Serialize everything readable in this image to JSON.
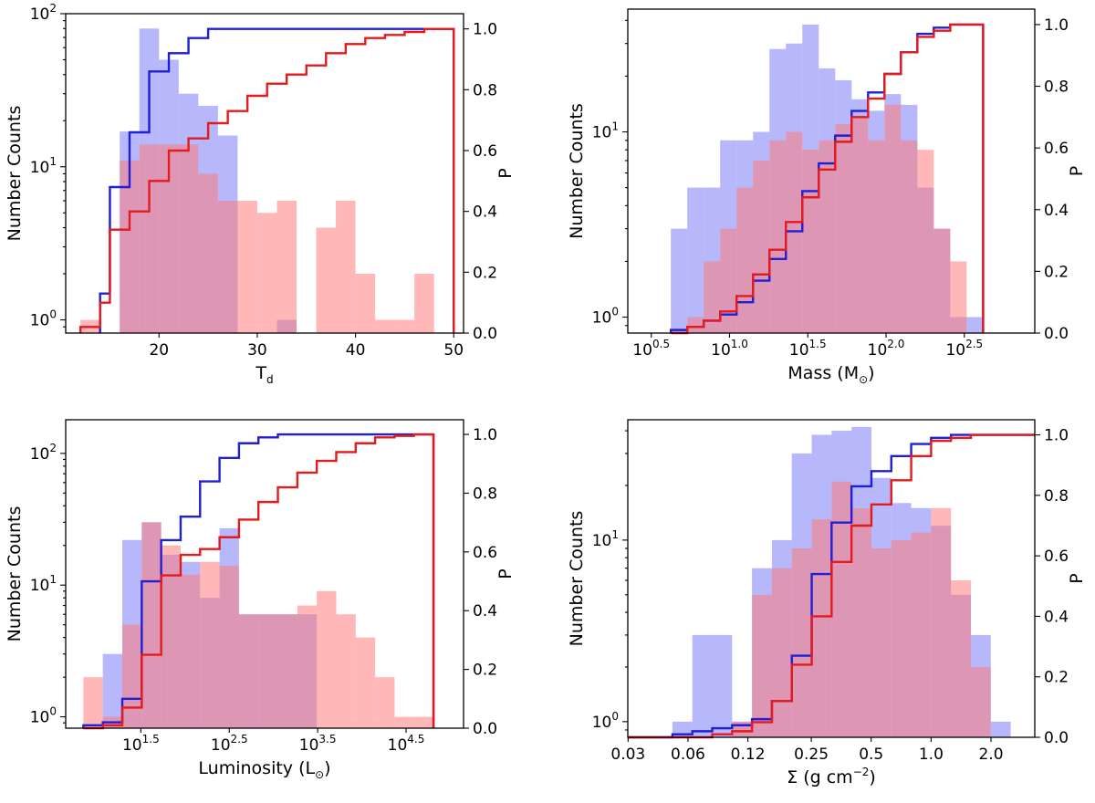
{
  "chart_data": [
    {
      "type": "bar",
      "title": "",
      "xlabel": "T",
      "xlabel_sub": "d",
      "ylabel": "Number Counts",
      "y2label": "P",
      "xscale": "linear",
      "xlim": [
        10.5,
        51
      ],
      "ylim": [
        0.82,
        100
      ],
      "y2lim": [
        0,
        1.05
      ],
      "x_ticks": [
        {
          "value": 20,
          "label": "20"
        },
        {
          "value": 30,
          "label": "30"
        },
        {
          "value": 40,
          "label": "40"
        },
        {
          "value": 50,
          "label": "50"
        }
      ],
      "y_ticks": [
        {
          "value": 1,
          "label": "10",
          "sup": "0"
        },
        {
          "value": 10,
          "label": "10",
          "sup": "1"
        },
        {
          "value": 100,
          "label": "10",
          "sup": "2"
        }
      ],
      "y2_ticks": [
        "0.0",
        "0.2",
        "0.4",
        "0.6",
        "0.8",
        "1.0"
      ],
      "series": [
        {
          "name": "blue histogram",
          "color": "#7b7bf7",
          "edges": [
            12,
            14,
            16,
            18,
            20,
            22,
            24,
            26,
            28,
            30,
            32,
            34,
            36,
            38,
            40,
            42,
            44,
            46,
            48,
            50
          ],
          "counts": [
            0,
            0,
            17,
            80,
            50,
            30,
            25,
            16,
            0,
            0,
            1,
            0,
            0,
            0,
            0,
            0,
            0,
            0,
            0
          ]
        },
        {
          "name": "red histogram",
          "color": "#ff7b7b",
          "edges": [
            12,
            14,
            16,
            18,
            20,
            22,
            24,
            26,
            28,
            30,
            32,
            34,
            36,
            38,
            40,
            42,
            44,
            46,
            48,
            50
          ],
          "counts": [
            1,
            0,
            11,
            14,
            14,
            14,
            9,
            6,
            6,
            5,
            6,
            0,
            4,
            6,
            2,
            1,
            1,
            2,
            0
          ]
        },
        {
          "name": "blue cumulative",
          "color": "#1f1fd6",
          "edges": [
            14,
            15,
            16,
            17,
            18,
            19,
            20,
            21,
            22,
            23,
            24,
            25,
            26,
            27,
            28,
            29,
            30,
            31,
            32,
            33,
            34,
            35,
            36,
            37,
            38,
            39,
            40,
            41,
            42,
            43,
            44,
            45,
            46,
            47,
            48,
            49,
            50
          ],
          "values": [
            0.13,
            0.48,
            0.48,
            0.66,
            0.66,
            0.86,
            0.86,
            0.92,
            0.92,
            0.97,
            0.97,
            1.0,
            1.0,
            1.0,
            1.0,
            1.0,
            1.0,
            1.0,
            1.0,
            1.0,
            1.0,
            1.0,
            1.0,
            1.0,
            1.0,
            1.0,
            1.0,
            1.0,
            1.0,
            1.0,
            1.0,
            1.0,
            1.0,
            1.0,
            1.0,
            1.0
          ]
        },
        {
          "name": "red cumulative",
          "color": "#e41a1c",
          "edges": [
            12,
            14,
            15,
            16,
            17,
            18,
            19,
            20,
            21,
            22,
            23,
            24,
            25,
            26,
            27,
            28,
            29,
            30,
            31,
            32,
            33,
            34,
            35,
            36,
            37,
            38,
            39,
            40,
            41,
            42,
            43,
            44,
            45,
            46,
            47,
            48,
            49,
            50
          ],
          "values": [
            0.02,
            0.1,
            0.34,
            0.34,
            0.4,
            0.4,
            0.5,
            0.5,
            0.6,
            0.6,
            0.64,
            0.64,
            0.69,
            0.69,
            0.73,
            0.73,
            0.78,
            0.78,
            0.82,
            0.82,
            0.85,
            0.85,
            0.88,
            0.88,
            0.92,
            0.92,
            0.95,
            0.95,
            0.97,
            0.97,
            0.98,
            0.98,
            0.99,
            0.99,
            1.0,
            1.0,
            1.0
          ]
        }
      ]
    },
    {
      "type": "bar",
      "title": "",
      "xlabel": "Mass (M",
      "xlabel_sym": "⊙",
      "xlabel_end": ")",
      "ylabel": "Number Counts",
      "y2label": "P",
      "xscale": "log",
      "xlim": [
        0.35,
        2.95
      ],
      "ylim": [
        0.82,
        46
      ],
      "y2lim": [
        0,
        1.05
      ],
      "x_ticks": [
        {
          "value": 0.5,
          "label": "10",
          "sup": "0.5"
        },
        {
          "value": 1.0,
          "label": "10",
          "sup": "1.0"
        },
        {
          "value": 1.5,
          "label": "10",
          "sup": "1.5"
        },
        {
          "value": 2.0,
          "label": "10",
          "sup": "2.0"
        },
        {
          "value": 2.5,
          "label": "10",
          "sup": "2.5"
        }
      ],
      "y_ticks": [
        {
          "value": 1,
          "label": "10",
          "sup": "0"
        },
        {
          "value": 10,
          "label": "10",
          "sup": "1"
        }
      ],
      "y2_ticks": [
        "0.0",
        "0.2",
        "0.4",
        "0.6",
        "0.8",
        "1.0"
      ],
      "series": [
        {
          "name": "blue histogram",
          "color": "#7b7bf7",
          "edges": [
            0.625,
            0.73,
            0.835,
            0.94,
            1.045,
            1.15,
            1.255,
            1.36,
            1.465,
            1.57,
            1.675,
            1.78,
            1.885,
            1.99,
            2.095,
            2.2,
            2.305,
            2.41,
            2.515,
            2.62
          ],
          "counts": [
            3,
            5,
            5,
            9,
            9,
            10,
            28,
            30,
            38,
            22,
            19,
            15,
            13,
            16,
            14,
            5,
            3,
            1,
            1
          ]
        },
        {
          "name": "red histogram",
          "color": "#ff7b7b",
          "edges": [
            0.625,
            0.73,
            0.835,
            0.94,
            1.045,
            1.15,
            1.255,
            1.36,
            1.465,
            1.57,
            1.675,
            1.78,
            1.885,
            1.99,
            2.095,
            2.2,
            2.305,
            2.41,
            2.515,
            2.62
          ],
          "counts": [
            0,
            1,
            2,
            3,
            5,
            7,
            9,
            10,
            8,
            9,
            11,
            12,
            9,
            14,
            9,
            8,
            3,
            2,
            0
          ]
        },
        {
          "name": "blue cumulative",
          "color": "#1f1fd6",
          "edges": [
            0.625,
            0.73,
            0.835,
            0.94,
            1.045,
            1.15,
            1.255,
            1.36,
            1.465,
            1.57,
            1.675,
            1.78,
            1.885,
            1.99,
            2.095,
            2.2,
            2.305,
            2.41,
            2.515,
            2.62
          ],
          "values": [
            0.01,
            0.02,
            0.04,
            0.06,
            0.1,
            0.17,
            0.24,
            0.33,
            0.46,
            0.55,
            0.64,
            0.72,
            0.78,
            0.84,
            0.91,
            0.97,
            0.99,
            1.0,
            1.0
          ]
        },
        {
          "name": "red cumulative",
          "color": "#e41a1c",
          "edges": [
            0.625,
            0.73,
            0.835,
            0.94,
            1.045,
            1.15,
            1.255,
            1.36,
            1.465,
            1.57,
            1.675,
            1.78,
            1.885,
            1.99,
            2.095,
            2.2,
            2.305,
            2.41,
            2.515,
            2.62
          ],
          "values": [
            0.0,
            0.02,
            0.04,
            0.07,
            0.12,
            0.19,
            0.27,
            0.36,
            0.44,
            0.53,
            0.62,
            0.7,
            0.76,
            0.84,
            0.91,
            0.96,
            0.98,
            1.0,
            1.0
          ]
        }
      ]
    },
    {
      "type": "bar",
      "title": "",
      "xlabel": "Luminosity (L",
      "xlabel_sym": "⊙",
      "xlabel_end": ")",
      "ylabel": "Number Counts",
      "y2label": "P",
      "xscale": "log",
      "xlim": [
        0.65,
        5.15
      ],
      "ylim": [
        0.82,
        180
      ],
      "y2lim": [
        0,
        1.05
      ],
      "x_ticks": [
        {
          "value": 1.5,
          "label": "10",
          "sup": "1.5"
        },
        {
          "value": 2.5,
          "label": "10",
          "sup": "2.5"
        },
        {
          "value": 3.5,
          "label": "10",
          "sup": "3.5"
        },
        {
          "value": 4.5,
          "label": "10",
          "sup": "4.5"
        }
      ],
      "y_ticks": [
        {
          "value": 1,
          "label": "10",
          "sup": "0"
        },
        {
          "value": 10,
          "label": "10",
          "sup": "1"
        },
        {
          "value": 100,
          "label": "10",
          "sup": "2"
        }
      ],
      "y2_ticks": [
        "0.0",
        "0.2",
        "0.4",
        "0.6",
        "0.8",
        "1.0"
      ],
      "series": [
        {
          "name": "blue histogram",
          "color": "#7b7bf7",
          "edges": [
            0.85,
            1.07,
            1.29,
            1.51,
            1.73,
            1.95,
            2.17,
            2.39,
            2.61,
            2.83,
            3.05,
            3.27,
            3.49,
            3.71,
            3.93,
            4.15,
            4.37,
            4.59,
            4.81
          ],
          "counts": [
            0,
            3,
            22,
            30,
            17,
            15,
            8,
            27,
            6,
            6,
            6,
            6,
            0,
            0,
            0,
            0,
            0,
            0
          ]
        },
        {
          "name": "red histogram",
          "color": "#ff7b7b",
          "edges": [
            0.85,
            1.07,
            1.29,
            1.51,
            1.73,
            1.95,
            2.17,
            2.39,
            2.61,
            2.83,
            3.05,
            3.27,
            3.49,
            3.71,
            3.93,
            4.15,
            4.37,
            4.59,
            4.81
          ],
          "counts": [
            2,
            1,
            5,
            30,
            20,
            12,
            15,
            14,
            6,
            6,
            6,
            7,
            9,
            6,
            4,
            2,
            1,
            1
          ]
        },
        {
          "name": "blue cumulative",
          "color": "#1f1fd6",
          "edges": [
            0.85,
            1.07,
            1.29,
            1.51,
            1.73,
            1.95,
            2.17,
            2.39,
            2.61,
            2.83,
            3.05,
            3.27,
            3.49,
            3.71,
            3.93,
            4.15,
            4.37,
            4.59,
            4.81
          ],
          "values": [
            0.01,
            0.02,
            0.1,
            0.5,
            0.64,
            0.72,
            0.84,
            0.92,
            0.97,
            0.99,
            1.0,
            1.0,
            1.0,
            1.0,
            1.0,
            1.0,
            1.0,
            1.0
          ]
        },
        {
          "name": "red cumulative",
          "color": "#e41a1c",
          "edges": [
            0.85,
            1.07,
            1.29,
            1.51,
            1.73,
            1.95,
            2.17,
            2.39,
            2.61,
            2.83,
            3.05,
            3.27,
            3.49,
            3.71,
            3.93,
            4.15,
            4.37,
            4.59,
            4.81
          ],
          "values": [
            0.0,
            0.01,
            0.07,
            0.25,
            0.52,
            0.59,
            0.61,
            0.65,
            0.71,
            0.77,
            0.82,
            0.87,
            0.91,
            0.94,
            0.97,
            0.99,
            0.995,
            1.0
          ]
        }
      ]
    },
    {
      "type": "bar",
      "title": "",
      "xlabel": "Σ (g cm",
      "xlabel_sup": "−2",
      "xlabel_end": ")",
      "ylabel": "Number Counts",
      "y2label": "P",
      "xscale": "log",
      "xlim": [
        -1.5243,
        0.5211
      ],
      "ylim": [
        0.82,
        46
      ],
      "y2lim": [
        0,
        1.05
      ],
      "x_ticks": [
        {
          "value": -1.5229,
          "label": "0.03"
        },
        {
          "value": -1.2218,
          "label": "0.06"
        },
        {
          "value": -0.9208,
          "label": "0.12"
        },
        {
          "value": -0.6021,
          "label": "0.25"
        },
        {
          "value": -0.301,
          "label": "0.5"
        },
        {
          "value": 0.0,
          "label": "1.0"
        },
        {
          "value": 0.301,
          "label": "2.0"
        }
      ],
      "y_ticks": [
        {
          "value": 1,
          "label": "10",
          "sup": "0"
        },
        {
          "value": 10,
          "label": "10",
          "sup": "1"
        }
      ],
      "y2_ticks": [
        "0.0",
        "0.2",
        "0.4",
        "0.6",
        "0.8",
        "1.0"
      ],
      "series": [
        {
          "name": "blue histogram",
          "color": "#7b7bf7",
          "edges": [
            -1.3,
            -1.2,
            -1.1,
            -1.0,
            -0.9,
            -0.8,
            -0.7,
            -0.6,
            -0.5,
            -0.4,
            -0.3,
            -0.2,
            -0.1,
            0.0,
            0.1,
            0.2,
            0.3,
            0.4
          ],
          "counts": [
            1,
            3,
            3,
            1,
            7,
            10,
            30,
            38,
            40,
            42,
            22,
            16,
            15,
            12,
            5,
            3,
            1
          ]
        },
        {
          "name": "red histogram",
          "color": "#ff7b7b",
          "edges": [
            -1.3,
            -1.2,
            -1.1,
            -1.0,
            -0.9,
            -0.8,
            -0.7,
            -0.6,
            -0.5,
            -0.4,
            -0.3,
            -0.2,
            -0.1,
            0.0,
            0.1,
            0.2,
            0.3,
            0.4
          ],
          "counts": [
            0,
            0,
            0,
            1,
            5,
            7,
            9,
            13,
            21,
            15,
            9,
            10,
            11,
            15,
            6,
            2,
            0
          ]
        },
        {
          "name": "blue cumulative",
          "color": "#1f1fd6",
          "edges": [
            -1.5243,
            -1.3,
            -1.2,
            -1.1,
            -1.0,
            -0.9,
            -0.8,
            -0.7,
            -0.6,
            -0.5,
            -0.4,
            -0.3,
            -0.2,
            -0.1,
            0.0,
            0.1,
            0.2,
            0.3,
            0.5211
          ],
          "values": [
            0.0,
            0.01,
            0.02,
            0.03,
            0.04,
            0.06,
            0.12,
            0.27,
            0.54,
            0.71,
            0.83,
            0.88,
            0.93,
            0.97,
            0.99,
            1.0,
            1.0,
            1.0
          ]
        },
        {
          "name": "red cumulative",
          "color": "#e41a1c",
          "edges": [
            -1.5243,
            -1.3,
            -1.2,
            -1.1,
            -1.0,
            -0.9,
            -0.8,
            -0.7,
            -0.6,
            -0.5,
            -0.4,
            -0.3,
            -0.2,
            -0.1,
            0.0,
            0.1,
            0.2,
            0.3,
            0.5211
          ],
          "values": [
            0.0,
            0.0,
            0.0,
            0.01,
            0.02,
            0.05,
            0.12,
            0.24,
            0.4,
            0.58,
            0.7,
            0.77,
            0.85,
            0.93,
            0.98,
            0.99,
            1.0,
            1.0
          ]
        }
      ]
    }
  ]
}
